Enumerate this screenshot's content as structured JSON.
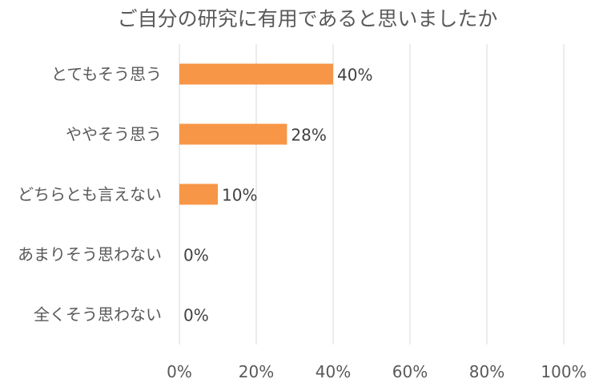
{
  "chart_data": {
    "type": "bar",
    "orientation": "horizontal",
    "title": "ご自分の研究に有用であると思いましたか",
    "categories": [
      "とてもそう思う",
      "ややそう思う",
      "どちらとも言えない",
      "あまりそう思わない",
      "全くそう思わない"
    ],
    "values": [
      40,
      28,
      10,
      0,
      0
    ],
    "data_labels": [
      "40%",
      "28%",
      "10%",
      "0%",
      "0%"
    ],
    "xlim": [
      0,
      100
    ],
    "xticks": [
      0,
      20,
      40,
      60,
      80,
      100
    ],
    "xtick_labels": [
      "0%",
      "20%",
      "40%",
      "60%",
      "80%",
      "100%"
    ],
    "xlabel": "",
    "ylabel": "",
    "grid": true,
    "legend": "none",
    "colors": {
      "bar": "#F79646",
      "grid": "#D9D9D9",
      "text": "#595959"
    }
  }
}
